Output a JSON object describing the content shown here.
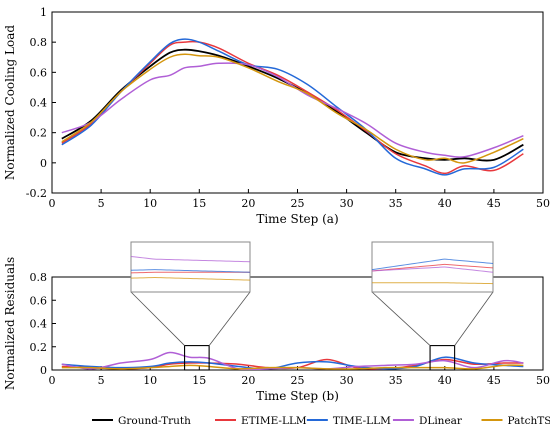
{
  "chart_data": [
    {
      "type": "line",
      "xlabel": "Time Step (a)",
      "ylabel": "Normalized Cooling Load",
      "xlim": [
        0,
        50
      ],
      "ylim": [
        -0.2,
        1.0
      ],
      "xticks": [
        0,
        5,
        10,
        15,
        20,
        25,
        30,
        35,
        40,
        45,
        50
      ],
      "yticks": [
        -0.2,
        0.0,
        0.2,
        0.4,
        0.6,
        0.8,
        1.0
      ],
      "x": [
        1,
        4,
        7,
        10,
        12,
        13.5,
        15,
        17,
        20,
        23,
        26,
        29,
        32,
        35,
        38,
        40,
        42,
        45,
        48
      ],
      "series": [
        {
          "name": "Ground-Truth",
          "color": "#000000",
          "values": [
            0.16,
            0.28,
            0.48,
            0.64,
            0.73,
            0.75,
            0.74,
            0.71,
            0.64,
            0.56,
            0.46,
            0.34,
            0.2,
            0.07,
            0.03,
            0.02,
            0.03,
            0.02,
            0.12
          ]
        },
        {
          "name": "ETIME-LLM",
          "color": "#e8383d",
          "values": [
            0.13,
            0.26,
            0.47,
            0.66,
            0.78,
            0.8,
            0.8,
            0.76,
            0.66,
            0.58,
            0.47,
            0.35,
            0.21,
            0.06,
            -0.02,
            -0.07,
            -0.02,
            -0.05,
            0.06
          ]
        },
        {
          "name": "TIME-LLM",
          "color": "#2469d8",
          "values": [
            0.12,
            0.25,
            0.47,
            0.67,
            0.79,
            0.82,
            0.8,
            0.74,
            0.65,
            0.62,
            0.52,
            0.37,
            0.22,
            0.03,
            -0.04,
            -0.08,
            -0.04,
            -0.03,
            0.09
          ]
        },
        {
          "name": "DLinear",
          "color": "#b05fd6",
          "values": [
            0.2,
            0.27,
            0.42,
            0.55,
            0.58,
            0.63,
            0.64,
            0.66,
            0.65,
            0.57,
            0.45,
            0.36,
            0.26,
            0.13,
            0.07,
            0.05,
            0.04,
            0.1,
            0.18
          ]
        },
        {
          "name": "PatchTST",
          "color": "#d4960e",
          "values": [
            0.14,
            0.27,
            0.47,
            0.62,
            0.7,
            0.72,
            0.71,
            0.7,
            0.63,
            0.54,
            0.46,
            0.33,
            0.22,
            0.09,
            0.02,
            0.03,
            0.0,
            0.07,
            0.16
          ]
        }
      ]
    },
    {
      "type": "line",
      "xlabel": "Time Step (b)",
      "ylabel": "Normalized Residuals",
      "xlim": [
        0,
        50
      ],
      "ylim": [
        0.0,
        0.8
      ],
      "xticks": [
        0,
        5,
        10,
        15,
        20,
        25,
        30,
        35,
        40,
        45,
        50
      ],
      "yticks": [
        0.0,
        0.2,
        0.4,
        0.6,
        0.8
      ],
      "x": [
        1,
        4,
        7,
        10,
        12,
        14,
        16,
        19,
        22,
        25,
        28,
        31,
        34,
        37,
        40,
        43,
        46,
        48
      ],
      "series": [
        {
          "name": "ETIME-LLM",
          "color": "#e8383d",
          "values": [
            0.03,
            0.02,
            0.01,
            0.02,
            0.05,
            0.06,
            0.06,
            0.05,
            0.02,
            0.02,
            0.09,
            0.02,
            0.01,
            0.04,
            0.09,
            0.05,
            0.06,
            0.06
          ]
        },
        {
          "name": "TIME-LLM",
          "color": "#2469d8",
          "values": [
            0.05,
            0.03,
            0.02,
            0.03,
            0.06,
            0.07,
            0.06,
            0.03,
            0.01,
            0.06,
            0.07,
            0.03,
            0.01,
            0.03,
            0.11,
            0.06,
            0.04,
            0.03
          ]
        },
        {
          "name": "DLinear",
          "color": "#b05fd6",
          "values": [
            0.05,
            0.01,
            0.06,
            0.09,
            0.15,
            0.11,
            0.1,
            0.01,
            0.01,
            0.02,
            0.01,
            0.03,
            0.04,
            0.05,
            0.08,
            0.02,
            0.08,
            0.06
          ]
        },
        {
          "name": "PatchTST",
          "color": "#d4960e",
          "values": [
            0.02,
            0.02,
            0.01,
            0.02,
            0.03,
            0.04,
            0.03,
            0.01,
            0.02,
            0.02,
            0.01,
            0.01,
            0.02,
            0.02,
            0.02,
            0.01,
            0.04,
            0.04
          ]
        }
      ],
      "zoom_windows": [
        [
          13.5,
          16
        ],
        [
          38.5,
          41
        ]
      ]
    }
  ],
  "legend": {
    "placement": "bottom",
    "entries": [
      {
        "label": "Ground-Truth",
        "color": "#000000"
      },
      {
        "label": "ETIME-LLM",
        "color": "#e8383d"
      },
      {
        "label": "TIME-LLM",
        "color": "#2469d8"
      },
      {
        "label": "DLinear",
        "color": "#b05fd6"
      },
      {
        "label": "PatchTST",
        "color": "#d4960e"
      }
    ]
  }
}
